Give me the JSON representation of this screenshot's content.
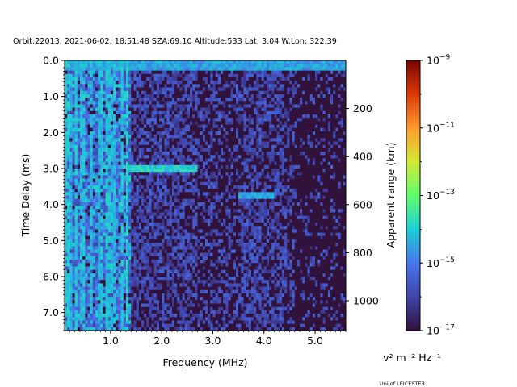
{
  "chart_data": {
    "type": "heatmap",
    "title": "Orbit:22013, 2021-06-02, 18:51:48 SZA:69.10 Altitude:533 Lat: 3.04 W.Lon: 322.39",
    "xlabel": "Frequency (MHz)",
    "ylabel": "Time Delay (ms)",
    "y2label": "Apparent range (km)",
    "xlim": [
      0.1,
      5.6
    ],
    "ylim": [
      7.5,
      0.0
    ],
    "y_inverted": true,
    "x_ticks": [
      "1.0",
      "2.0",
      "3.0",
      "4.0",
      "5.0"
    ],
    "x_tick_values": [
      1.0,
      2.0,
      3.0,
      4.0,
      5.0
    ],
    "y_ticks": [
      "0.0",
      "1.0",
      "2.0",
      "3.0",
      "4.0",
      "5.0",
      "6.0",
      "7.0"
    ],
    "y_tick_values": [
      0,
      1,
      2,
      3,
      4,
      5,
      6,
      7
    ],
    "y2_ticks": [
      "200",
      "400",
      "600",
      "800",
      "1000"
    ],
    "y2_tick_values": [
      200,
      400,
      600,
      800,
      1000
    ],
    "colorbar": {
      "label": "v² m⁻² Hz⁻¹",
      "scale": "log",
      "colormap": "turbo",
      "vmin": 1e-17,
      "vmax": 1e-09,
      "tick_exponents": [
        -9,
        -11,
        -13,
        -15,
        -17
      ]
    },
    "features": [
      {
        "description": "strong band",
        "time_delay_ms": [
          0.0,
          0.3
        ],
        "freq_mhz": [
          0.1,
          5.6
        ],
        "level_exp": -14.5
      },
      {
        "description": "echo trace",
        "time_delay_ms": [
          2.9,
          3.1
        ],
        "freq_mhz": [
          1.3,
          2.7
        ],
        "level_exp": -14.0
      },
      {
        "description": "echo trace",
        "time_delay_ms": [
          3.7,
          3.8
        ],
        "freq_mhz": [
          3.5,
          4.2
        ],
        "level_exp": -14.5
      },
      {
        "description": "low-frequency vertical lines",
        "time_delay_ms": [
          0.0,
          7.5
        ],
        "freq_mhz": [
          0.1,
          1.4
        ],
        "level_exp": -14.3
      }
    ]
  },
  "footer": {
    "credit": "Uni of LEICESTER"
  }
}
